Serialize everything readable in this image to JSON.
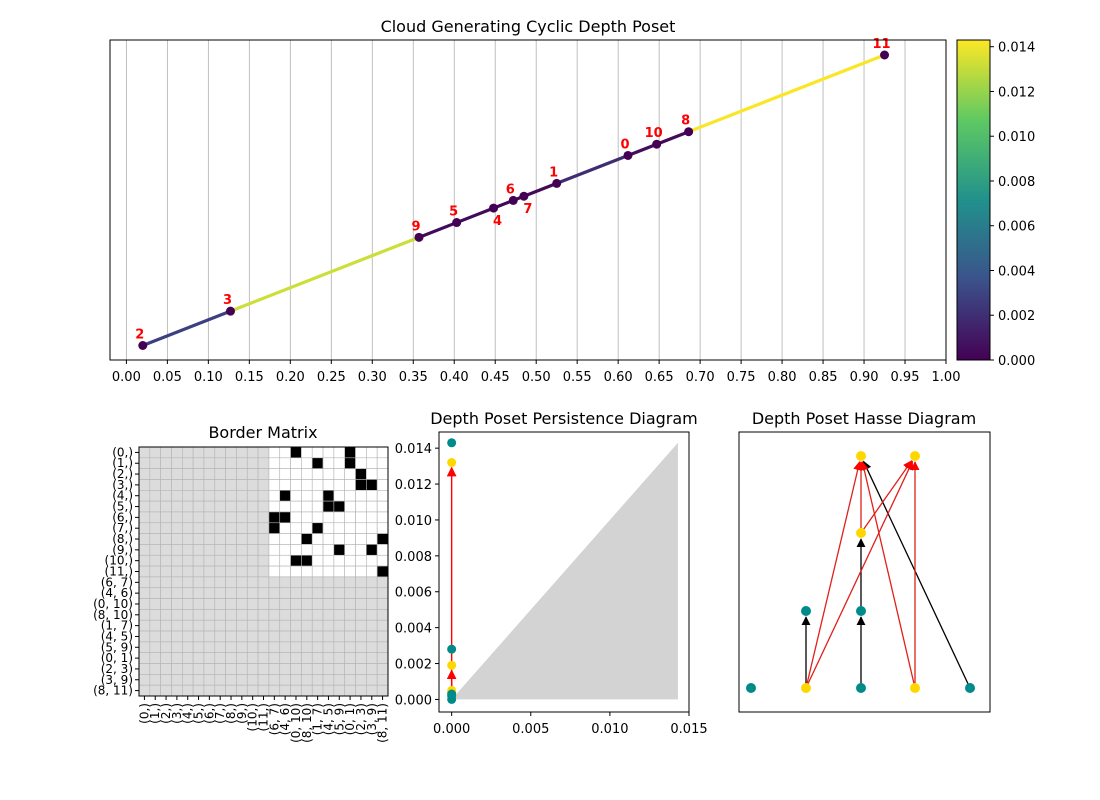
{
  "chart_data": [
    {
      "type": "line",
      "title": "Cloud Generating Cyclic Depth Poset",
      "xlim": [
        -0.02,
        1.0
      ],
      "x_ticks": [
        "0.00",
        "0.05",
        "0.10",
        "0.15",
        "0.20",
        "0.25",
        "0.30",
        "0.35",
        "0.40",
        "0.45",
        "0.50",
        "0.55",
        "0.60",
        "0.65",
        "0.70",
        "0.75",
        "0.80",
        "0.85",
        "0.90",
        "0.95",
        "1.00"
      ],
      "grid": "vertical",
      "points": [
        {
          "label": "0",
          "x": 0.612,
          "y": 0.612
        },
        {
          "label": "1",
          "x": 0.525,
          "y": 0.525
        },
        {
          "label": "2",
          "x": 0.02,
          "y": 0.02
        },
        {
          "label": "3",
          "x": 0.127,
          "y": 0.127
        },
        {
          "label": "4",
          "x": 0.448,
          "y": 0.448
        },
        {
          "label": "5",
          "x": 0.403,
          "y": 0.403
        },
        {
          "label": "6",
          "x": 0.472,
          "y": 0.472
        },
        {
          "label": "7",
          "x": 0.485,
          "y": 0.485
        },
        {
          "label": "8",
          "x": 0.686,
          "y": 0.686
        },
        {
          "label": "9",
          "x": 0.357,
          "y": 0.357
        },
        {
          "label": "10",
          "x": 0.647,
          "y": 0.647
        },
        {
          "label": "11",
          "x": 0.925,
          "y": 0.925
        }
      ],
      "segments": [
        {
          "from": "2",
          "to": "3",
          "value": 0.0028
        },
        {
          "from": "3",
          "to": "9",
          "value": 0.0132
        },
        {
          "from": "9",
          "to": "5",
          "value": 0.0004
        },
        {
          "from": "5",
          "to": "4",
          "value": 0.0004
        },
        {
          "from": "4",
          "to": "6",
          "value": 0.0003
        },
        {
          "from": "6",
          "to": "7",
          "value": 0.0002
        },
        {
          "from": "7",
          "to": "1",
          "value": 0.0004
        },
        {
          "from": "1",
          "to": "0",
          "value": 0.0019
        },
        {
          "from": "0",
          "to": "10",
          "value": 0.0005
        },
        {
          "from": "10",
          "to": "8",
          "value": 0.0004
        },
        {
          "from": "8",
          "to": "11",
          "value": 0.0142
        }
      ],
      "colorbar": {
        "colormap": "viridis",
        "min": 0.0,
        "max": 0.0143,
        "ticks": [
          "0.000",
          "0.002",
          "0.004",
          "0.006",
          "0.008",
          "0.010",
          "0.012",
          "0.014"
        ]
      }
    },
    {
      "type": "heatmap",
      "title": "Border Matrix",
      "row_labels": [
        "(0,)",
        "(1,)",
        "(2,)",
        "(3,)",
        "(4,)",
        "(5,)",
        "(6,)",
        "(7,)",
        "(8,)",
        "(9,)",
        "(10,)",
        "(11,)",
        "(6, 7)",
        "(4, 6)",
        "(0, 10)",
        "(8, 10)",
        "(1, 7)",
        "(4, 5)",
        "(5, 9)",
        "(0, 1)",
        "(2, 3)",
        "(3, 9)",
        "(8, 11)"
      ],
      "col_labels": [
        "(0,)",
        "(1,)",
        "(2,)",
        "(3,)",
        "(4,)",
        "(5,)",
        "(6,)",
        "(7,)",
        "(8,)",
        "(9,)",
        "(10,)",
        "(11,)",
        "(6, 7)",
        "(4, 6)",
        "(0, 10)",
        "(8, 10)",
        "(1, 7)",
        "(4, 5)",
        "(5, 9)",
        "(0, 1)",
        "(2, 3)",
        "(3, 9)",
        "(8, 11)"
      ],
      "ones": [
        [
          0,
          14
        ],
        [
          0,
          19
        ],
        [
          1,
          16
        ],
        [
          1,
          19
        ],
        [
          2,
          20
        ],
        [
          3,
          20
        ],
        [
          3,
          21
        ],
        [
          4,
          13
        ],
        [
          4,
          17
        ],
        [
          5,
          17
        ],
        [
          5,
          18
        ],
        [
          6,
          12
        ],
        [
          6,
          13
        ],
        [
          7,
          12
        ],
        [
          7,
          16
        ],
        [
          8,
          15
        ],
        [
          8,
          22
        ],
        [
          9,
          18
        ],
        [
          9,
          21
        ],
        [
          10,
          14
        ],
        [
          10,
          15
        ],
        [
          11,
          22
        ]
      ]
    },
    {
      "type": "scatter",
      "title": "Depth Poset Persistence Diagram",
      "xlim": [
        -0.0008,
        0.015
      ],
      "ylim": [
        -0.0007,
        0.0149
      ],
      "x_ticks": [
        "0.000",
        "0.005",
        "0.010",
        "0.015"
      ],
      "y_ticks": [
        "0.000",
        "0.002",
        "0.004",
        "0.006",
        "0.008",
        "0.010",
        "0.012",
        "0.014"
      ],
      "diagonal_max": 0.0143,
      "points": [
        {
          "x": 0.0,
          "y": 0.0143,
          "kind": "teal"
        },
        {
          "x": 0.0,
          "y": 0.0132,
          "kind": "gold"
        },
        {
          "x": 0.0,
          "y": 0.0028,
          "kind": "teal"
        },
        {
          "x": 0.0,
          "y": 0.0019,
          "kind": "gold"
        },
        {
          "x": 0.0,
          "y": 0.0005,
          "kind": "gold"
        },
        {
          "x": 0.0,
          "y": 0.0004,
          "kind": "gold"
        },
        {
          "x": 0.0,
          "y": 0.0003,
          "kind": "teal"
        },
        {
          "x": 0.0,
          "y": 0.0002,
          "kind": "teal"
        },
        {
          "x": 0.0,
          "y": 0.0,
          "kind": "teal"
        }
      ],
      "arrows": [
        {
          "from": [
            0.0,
            0.0005
          ],
          "to": [
            0.0,
            0.0132
          ],
          "color": "red"
        },
        {
          "from": [
            0.0,
            0.0005
          ],
          "to": [
            0.0,
            0.0019
          ],
          "color": "red"
        }
      ]
    },
    {
      "type": "diagram",
      "title": "Depth Poset Hasse Diagram",
      "nodes": [
        {
          "id": "a",
          "col": 0,
          "row": 0,
          "kind": "teal"
        },
        {
          "id": "b",
          "col": 1,
          "row": 0,
          "kind": "gold"
        },
        {
          "id": "c",
          "col": 2,
          "row": 0,
          "kind": "teal"
        },
        {
          "id": "d",
          "col": 3,
          "row": 0,
          "kind": "gold"
        },
        {
          "id": "e",
          "col": 4,
          "row": 0,
          "kind": "teal"
        },
        {
          "id": "f",
          "col": 1,
          "row": 1,
          "kind": "teal"
        },
        {
          "id": "g",
          "col": 2,
          "row": 1,
          "kind": "teal"
        },
        {
          "id": "h",
          "col": 2,
          "row": 2,
          "kind": "gold"
        },
        {
          "id": "i",
          "col": 2,
          "row": 3,
          "kind": "gold"
        },
        {
          "id": "j",
          "col": 3,
          "row": 3,
          "kind": "gold"
        }
      ],
      "edges": [
        {
          "from": "b",
          "to": "f",
          "color": "black"
        },
        {
          "from": "c",
          "to": "g",
          "color": "black"
        },
        {
          "from": "g",
          "to": "h",
          "color": "black"
        },
        {
          "from": "e",
          "to": "i",
          "color": "black"
        },
        {
          "from": "h",
          "to": "i",
          "color": "red"
        },
        {
          "from": "b",
          "to": "i",
          "color": "red"
        },
        {
          "from": "b",
          "to": "j",
          "color": "red"
        },
        {
          "from": "d",
          "to": "i",
          "color": "red"
        },
        {
          "from": "d",
          "to": "j",
          "color": "red"
        },
        {
          "from": "h",
          "to": "j",
          "color": "red"
        }
      ]
    }
  ]
}
